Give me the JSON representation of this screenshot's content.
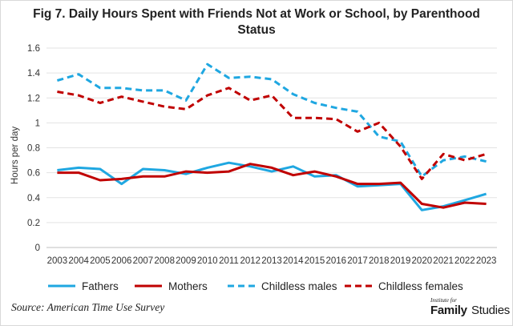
{
  "chart_data": {
    "type": "line",
    "title": "Fig 7. Daily Hours Spent with Friends Not at Work or School, by Parenthood Status",
    "ylabel": "Hours per day",
    "xlabel": "",
    "ylim": [
      0,
      1.6
    ],
    "yticks": [
      "0",
      "0.2",
      "0.4",
      "0.6",
      "0.8",
      "1",
      "1.2",
      "1.4",
      "1.6"
    ],
    "ytick_values": [
      0,
      0.2,
      0.4,
      0.6,
      0.8,
      1,
      1.2,
      1.4,
      1.6
    ],
    "x": [
      "2003",
      "2004",
      "2005",
      "2006",
      "2007",
      "2008",
      "2009",
      "2010",
      "2011",
      "2012",
      "2013",
      "2014",
      "2015",
      "2016",
      "2017",
      "2018",
      "2019",
      "2020",
      "2021",
      "2022",
      "2023"
    ],
    "grid": true,
    "legend_placement": "bottom",
    "series": [
      {
        "name": "Fathers",
        "color": "#1fa7e1",
        "dash": "solid",
        "values": [
          0.62,
          0.64,
          0.63,
          0.51,
          0.63,
          0.62,
          0.59,
          0.64,
          0.68,
          0.65,
          0.61,
          0.65,
          0.57,
          0.58,
          0.49,
          0.5,
          0.51,
          0.3,
          0.33,
          0.38,
          0.43
        ]
      },
      {
        "name": "Mothers",
        "color": "#c00000",
        "dash": "solid",
        "values": [
          0.6,
          0.6,
          0.54,
          0.55,
          0.57,
          0.57,
          0.61,
          0.6,
          0.61,
          0.67,
          0.64,
          0.58,
          0.61,
          0.57,
          0.51,
          0.51,
          0.52,
          0.35,
          0.32,
          0.36,
          0.35
        ]
      },
      {
        "name": "Childless males",
        "color": "#1fa7e1",
        "dash": "dashed",
        "values": [
          1.34,
          1.39,
          1.28,
          1.28,
          1.26,
          1.26,
          1.18,
          1.47,
          1.36,
          1.37,
          1.35,
          1.23,
          1.16,
          1.12,
          1.09,
          0.89,
          0.85,
          0.57,
          0.7,
          0.73,
          0.69
        ]
      },
      {
        "name": "Childless females",
        "color": "#c00000",
        "dash": "dashed",
        "values": [
          1.25,
          1.22,
          1.16,
          1.21,
          1.17,
          1.13,
          1.11,
          1.22,
          1.28,
          1.18,
          1.22,
          1.04,
          1.04,
          1.03,
          0.93,
          1.0,
          0.81,
          0.55,
          0.75,
          0.7,
          0.75
        ]
      }
    ]
  },
  "source": "Source: American Time Use Survey",
  "logo": {
    "small": "Institute for",
    "family": "Family",
    "studies": "Studies"
  }
}
